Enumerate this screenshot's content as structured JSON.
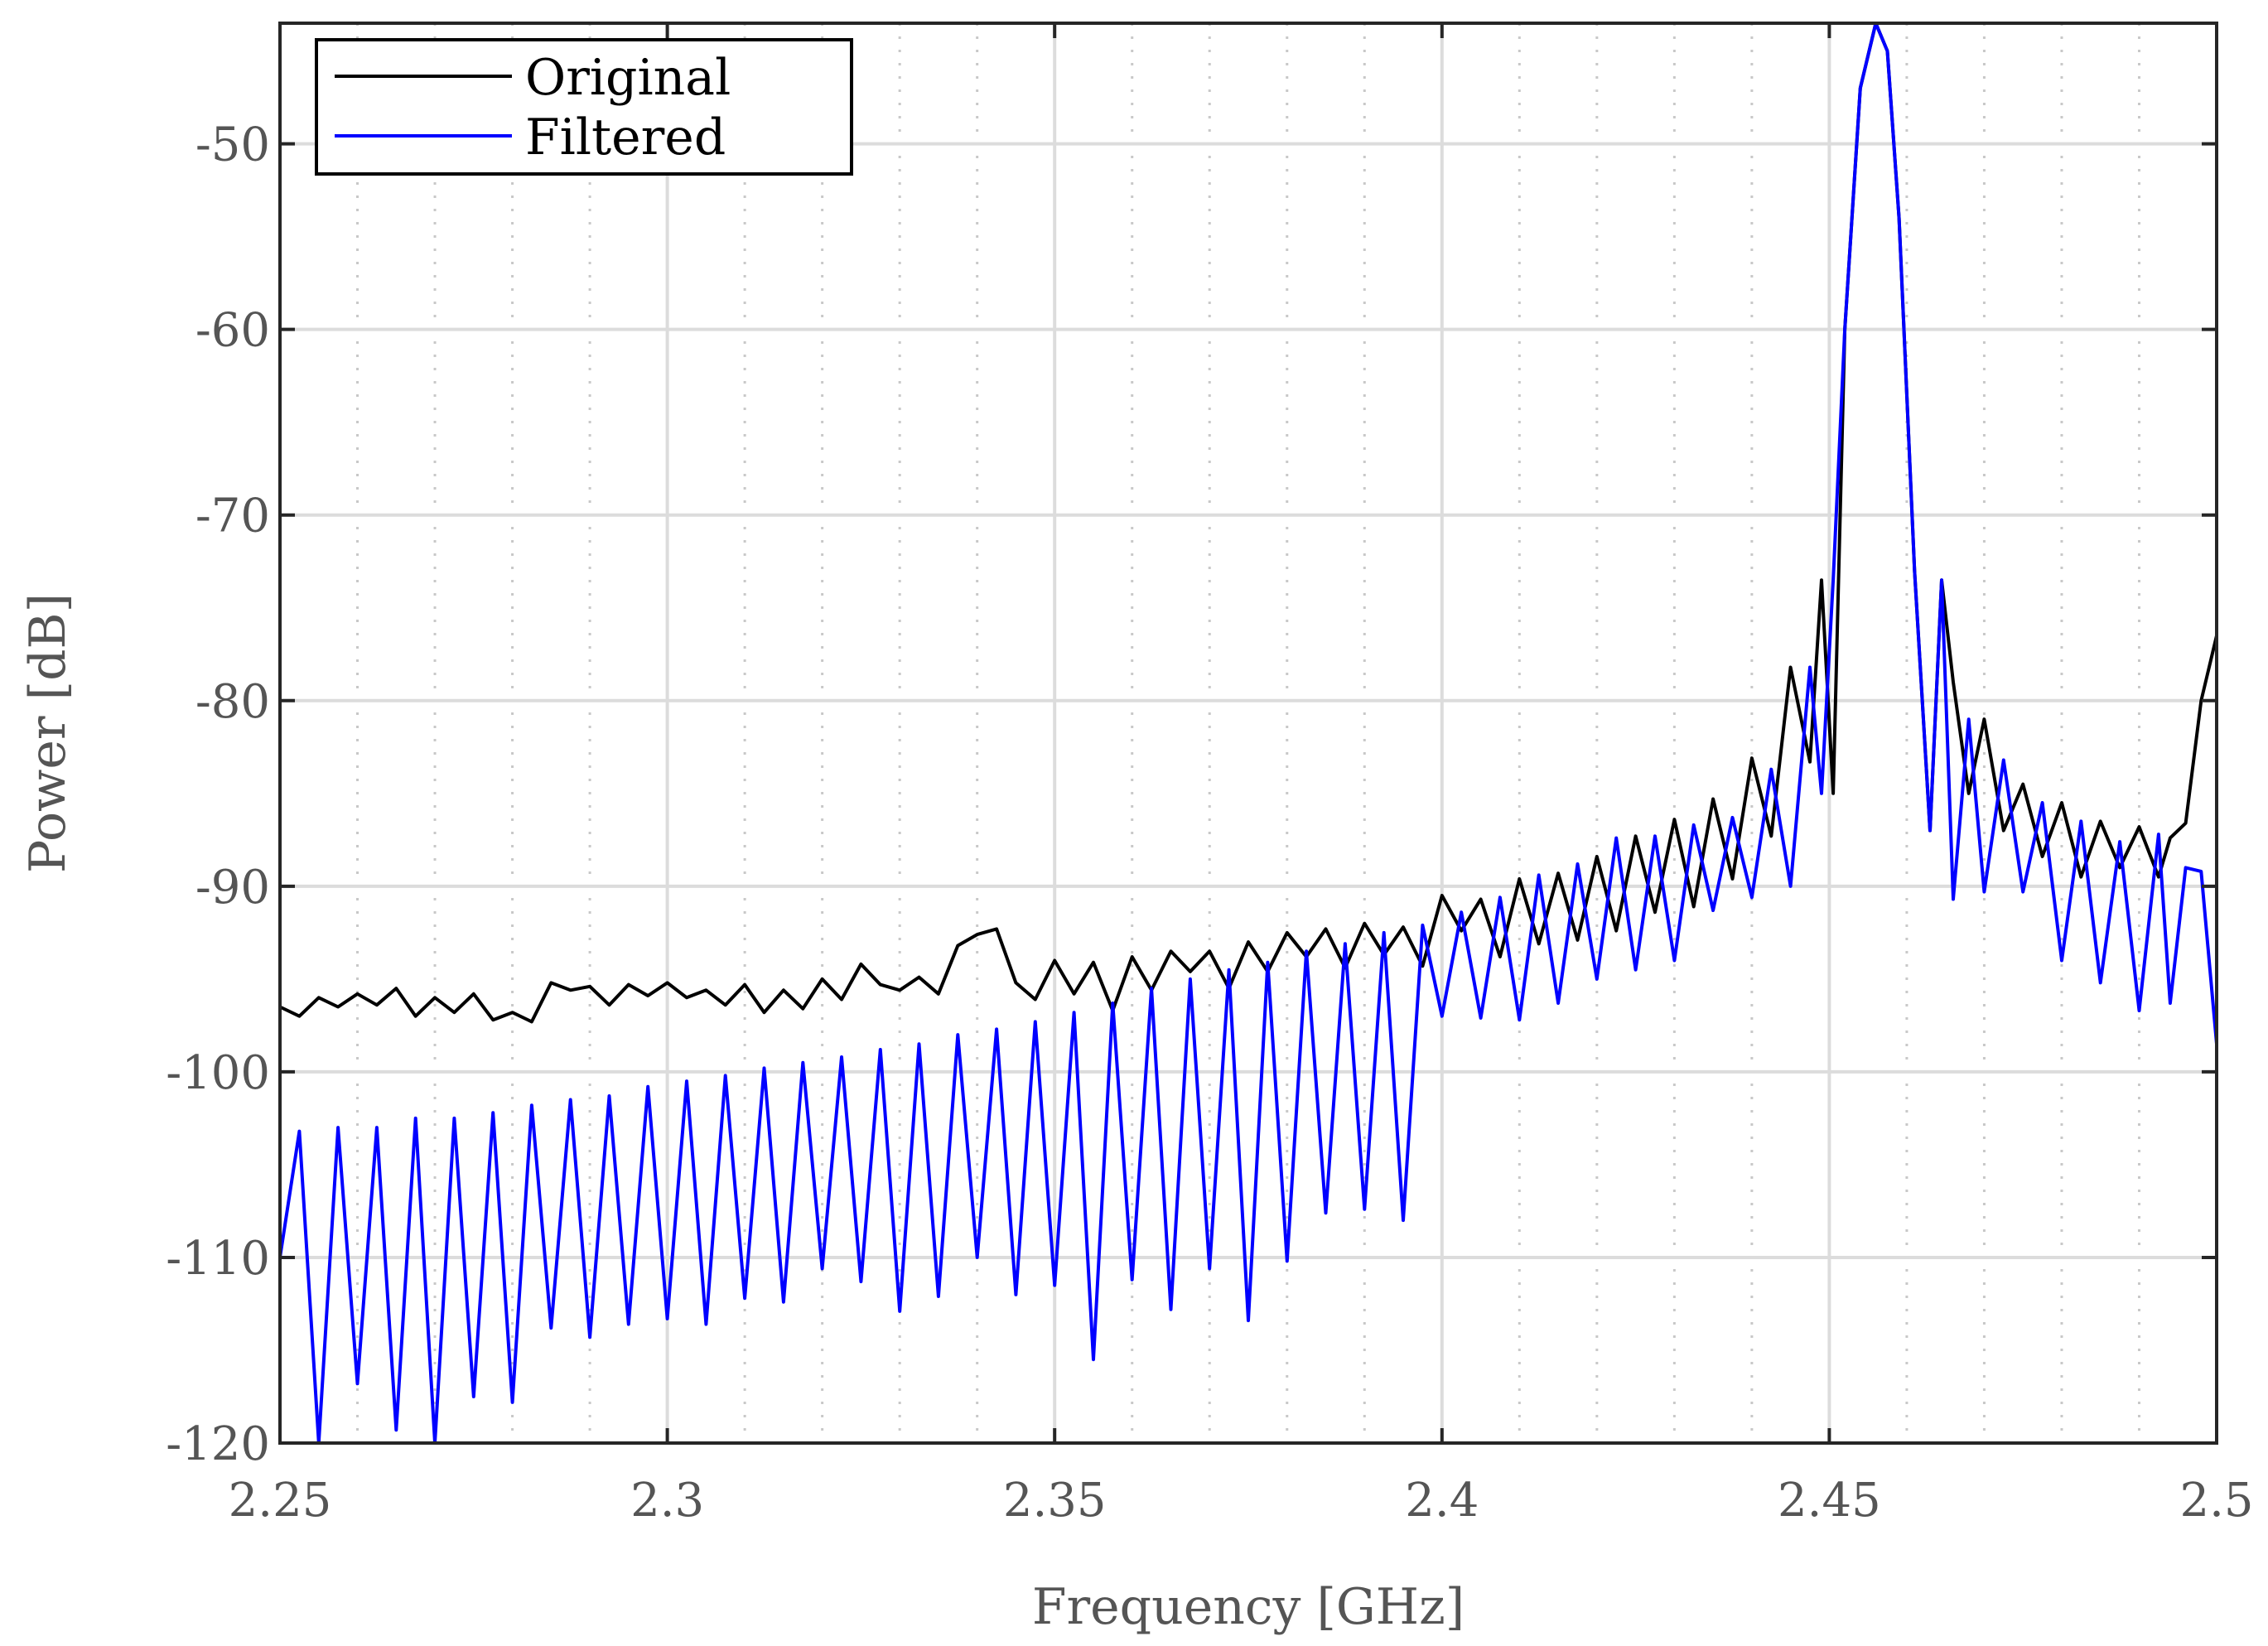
{
  "chart_data": {
    "type": "line",
    "title": "",
    "xlabel": "Frequency [GHz]",
    "ylabel": "Power [dB]",
    "xlim": [
      2.25,
      2.5
    ],
    "ylim": [
      -120,
      -43.5
    ],
    "xticks": [
      2.25,
      2.3,
      2.35,
      2.4,
      2.45,
      2.5
    ],
    "xtick_labels": [
      "2.25",
      "2.3",
      "2.35",
      "2.4",
      "2.45",
      "2.5"
    ],
    "yticks": [
      -120,
      -110,
      -100,
      -90,
      -80,
      -70,
      -60,
      -50
    ],
    "ytick_labels": [
      "-120",
      "-110",
      "-100",
      "-90",
      "-80",
      "-70",
      "-60",
      "-50"
    ],
    "grid": true,
    "legend_position": "top-left",
    "series": [
      {
        "name": "Original",
        "color": "#000000",
        "x": [
          2.25,
          2.2525,
          2.255,
          2.2575,
          2.26,
          2.2625,
          2.265,
          2.2675,
          2.27,
          2.2725,
          2.275,
          2.2775,
          2.28,
          2.2825,
          2.285,
          2.2875,
          2.29,
          2.2925,
          2.295,
          2.2975,
          2.3,
          2.3025,
          2.305,
          2.3075,
          2.31,
          2.3125,
          2.315,
          2.3175,
          2.32,
          2.3225,
          2.325,
          2.3275,
          2.33,
          2.3325,
          2.335,
          2.3375,
          2.34,
          2.3425,
          2.345,
          2.3475,
          2.35,
          2.3525,
          2.355,
          2.3575,
          2.36,
          2.3625,
          2.365,
          2.3675,
          2.37,
          2.3725,
          2.375,
          2.3775,
          2.38,
          2.3825,
          2.385,
          2.3875,
          2.39,
          2.3925,
          2.395,
          2.3975,
          2.4,
          2.4025,
          2.405,
          2.4075,
          2.41,
          2.4125,
          2.415,
          2.4175,
          2.42,
          2.4225,
          2.425,
          2.4275,
          2.43,
          2.4325,
          2.435,
          2.4375,
          2.44,
          2.4425,
          2.445,
          2.4475,
          2.449,
          2.4505,
          2.452,
          2.454,
          2.456,
          2.4575,
          2.459,
          2.461,
          2.463,
          2.4645,
          2.466,
          2.468,
          2.47,
          2.4725,
          2.475,
          2.4775,
          2.48,
          2.4825,
          2.485,
          2.4875,
          2.49,
          2.4925,
          2.494,
          2.496,
          2.498,
          2.5
        ],
        "y": [
          -96.5,
          -97.0,
          -96.0,
          -96.5,
          -95.8,
          -96.4,
          -95.5,
          -97.0,
          -96.0,
          -96.8,
          -95.8,
          -97.2,
          -96.8,
          -97.3,
          -95.2,
          -95.6,
          -95.4,
          -96.4,
          -95.3,
          -95.9,
          -95.2,
          -96.0,
          -95.6,
          -96.4,
          -95.3,
          -96.8,
          -95.6,
          -96.6,
          -95.0,
          -96.1,
          -94.2,
          -95.3,
          -95.6,
          -94.9,
          -95.8,
          -93.2,
          -92.6,
          -92.3,
          -95.2,
          -96.1,
          -94.0,
          -95.8,
          -94.1,
          -96.7,
          -93.8,
          -95.6,
          -93.5,
          -94.6,
          -93.5,
          -95.5,
          -93.0,
          -94.6,
          -92.5,
          -93.8,
          -92.3,
          -94.4,
          -92.0,
          -93.7,
          -92.2,
          -94.3,
          -90.5,
          -92.4,
          -90.7,
          -93.8,
          -89.6,
          -93.1,
          -89.3,
          -92.9,
          -88.4,
          -92.4,
          -87.3,
          -91.4,
          -86.4,
          -91.1,
          -85.3,
          -89.6,
          -83.1,
          -87.3,
          -78.2,
          -83.3,
          -73.5,
          -85.0,
          -60.0,
          -47.0,
          -43.5,
          -45.0,
          -54.0,
          -73.0,
          -87.0,
          -73.5,
          -79.0,
          -85.0,
          -81.0,
          -87.0,
          -84.5,
          -88.4,
          -85.5,
          -89.5,
          -86.5,
          -89.0,
          -86.8,
          -89.5,
          -87.4,
          -86.6,
          -80.0,
          -76.5
        ]
      },
      {
        "name": "Filtered",
        "color": "#0000ff",
        "x": [
          2.25,
          2.2525,
          2.255,
          2.2575,
          2.26,
          2.2625,
          2.265,
          2.2675,
          2.27,
          2.2725,
          2.275,
          2.2775,
          2.28,
          2.2825,
          2.285,
          2.2875,
          2.29,
          2.2925,
          2.295,
          2.2975,
          2.3,
          2.3025,
          2.305,
          2.3075,
          2.31,
          2.3125,
          2.315,
          2.3175,
          2.32,
          2.3225,
          2.325,
          2.3275,
          2.33,
          2.3325,
          2.335,
          2.3375,
          2.34,
          2.3425,
          2.345,
          2.3475,
          2.35,
          2.3525,
          2.355,
          2.3575,
          2.36,
          2.3625,
          2.365,
          2.3675,
          2.37,
          2.3725,
          2.375,
          2.3775,
          2.38,
          2.3825,
          2.385,
          2.3875,
          2.39,
          2.3925,
          2.395,
          2.3975,
          2.4,
          2.4025,
          2.405,
          2.4075,
          2.41,
          2.4125,
          2.415,
          2.4175,
          2.42,
          2.4225,
          2.425,
          2.4275,
          2.43,
          2.4325,
          2.435,
          2.4375,
          2.44,
          2.4425,
          2.445,
          2.4475,
          2.449,
          2.4505,
          2.452,
          2.454,
          2.456,
          2.4575,
          2.459,
          2.461,
          2.463,
          2.4645,
          2.466,
          2.468,
          2.47,
          2.4725,
          2.475,
          2.4775,
          2.48,
          2.4825,
          2.485,
          2.4875,
          2.49,
          2.4925,
          2.494,
          2.496,
          2.498,
          2.5
        ],
        "y": [
          -110.0,
          -103.2,
          -120.0,
          -103.0,
          -116.8,
          -103.0,
          -119.3,
          -102.5,
          -120.0,
          -102.5,
          -117.5,
          -102.2,
          -117.8,
          -101.8,
          -113.8,
          -101.5,
          -114.3,
          -101.3,
          -113.6,
          -100.8,
          -113.3,
          -100.5,
          -113.6,
          -100.2,
          -112.2,
          -99.8,
          -112.4,
          -99.5,
          -110.6,
          -99.2,
          -111.3,
          -98.8,
          -112.9,
          -98.5,
          -112.1,
          -98.0,
          -110.0,
          -97.7,
          -112.0,
          -97.3,
          -111.5,
          -96.8,
          -115.5,
          -96.3,
          -111.2,
          -95.5,
          -112.8,
          -95.0,
          -110.6,
          -94.5,
          -113.4,
          -94.1,
          -110.2,
          -93.5,
          -107.6,
          -93.1,
          -107.4,
          -92.5,
          -108.0,
          -92.1,
          -97.0,
          -91.4,
          -97.1,
          -90.6,
          -97.2,
          -89.4,
          -96.3,
          -88.8,
          -95.0,
          -87.4,
          -94.5,
          -87.3,
          -94.0,
          -86.7,
          -91.3,
          -86.3,
          -90.6,
          -83.7,
          -90.0,
          -78.2,
          -85.0,
          -73.5,
          -60.0,
          -47.0,
          -43.5,
          -45.0,
          -54.0,
          -73.0,
          -87.0,
          -73.5,
          -90.7,
          -81.0,
          -90.3,
          -83.2,
          -90.3,
          -85.5,
          -94.0,
          -86.5,
          -95.2,
          -87.6,
          -96.7,
          -87.2,
          -96.3,
          -89.0,
          -89.2,
          -98.5
        ]
      }
    ]
  }
}
